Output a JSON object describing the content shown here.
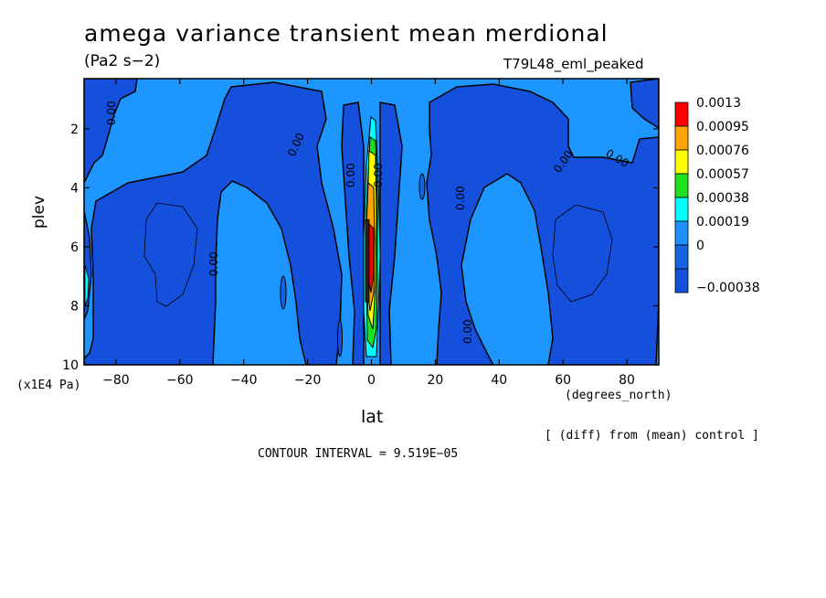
{
  "chart_data": {
    "type": "heatmap",
    "title": "amega variance transient mean merdional",
    "units": "(Pa2 s−2)",
    "run_label": "T79L48_eml_peaked",
    "xlabel": "lat",
    "x_units": "(degrees_north)",
    "ylabel": "plev",
    "y_units": "(x1E4 Pa)",
    "xlim": [
      -90,
      90
    ],
    "ylim": [
      10,
      0.3
    ],
    "x_ticks": [
      -80,
      -60,
      -40,
      -20,
      0,
      20,
      40,
      60,
      80
    ],
    "x_tick_labels": [
      "−80",
      "−60",
      "−40",
      "−20",
      "0",
      "20",
      "40",
      "60",
      "80"
    ],
    "y_ticks": [
      2,
      4,
      6,
      8,
      10
    ],
    "y_tick_labels": [
      "2",
      "4",
      "6",
      "8",
      "10"
    ],
    "contour_interval_text": "CONTOUR INTERVAL = 9.519E−05",
    "diff_note": "[ (diff) from (mean) control ]",
    "contour_label": "0.00",
    "legend": {
      "colors": [
        "#ff0000",
        "#ffa500",
        "#ffff00",
        "#1ee11e",
        "#00ffff",
        "#1e90ff",
        "#1464e6",
        "#1450dc"
      ],
      "labels": [
        "0.0013",
        "0.00095",
        "0.00076",
        "0.00057",
        "0.00038",
        "0.00019",
        "0",
        "−0.00038"
      ]
    },
    "regions": {
      "positive_color": "#1e96ff",
      "negative_color": "#1450dc",
      "weak_negative_centers": [
        {
          "lat": -65,
          "plev": 6.2
        },
        {
          "lat": 67,
          "plev": 6.3
        }
      ],
      "max_center": {
        "lat": 0,
        "plev": 6.5,
        "value": 0.0013
      }
    }
  }
}
